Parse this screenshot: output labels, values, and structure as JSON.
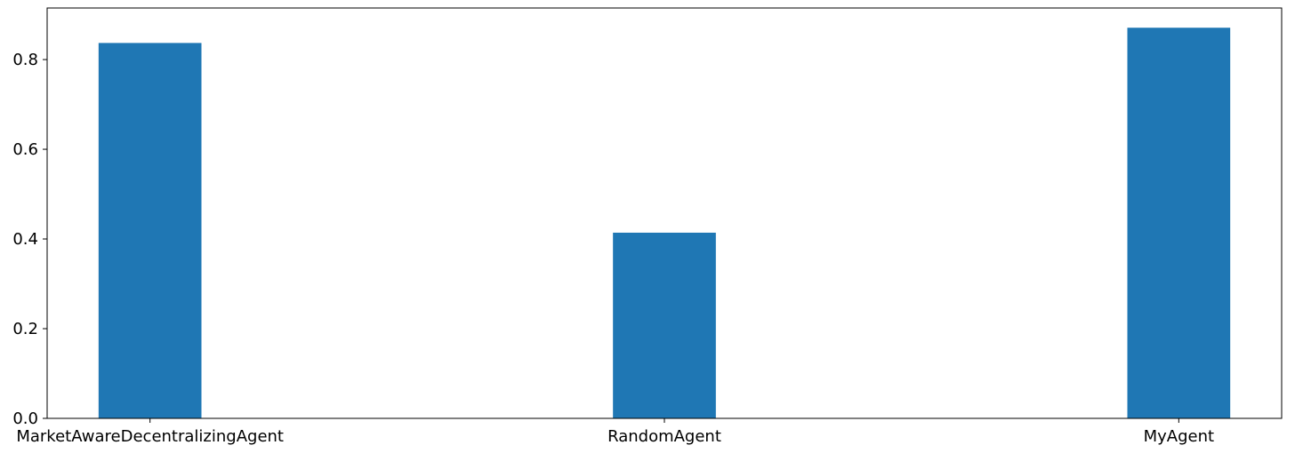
{
  "chart_data": {
    "type": "bar",
    "categories": [
      "MarketAwareDecentralizingAgent",
      "RandomAgent",
      "MyAgent"
    ],
    "values": [
      0.837,
      0.414,
      0.871
    ],
    "ylim": [
      0,
      0.915
    ],
    "yticks": [
      0.0,
      0.2,
      0.4,
      0.6,
      0.8
    ],
    "ytick_labels": [
      "0.0",
      "0.2",
      "0.4",
      "0.6",
      "0.8"
    ],
    "grid": false,
    "legend": "none",
    "bar_color": "#1f77b4"
  }
}
